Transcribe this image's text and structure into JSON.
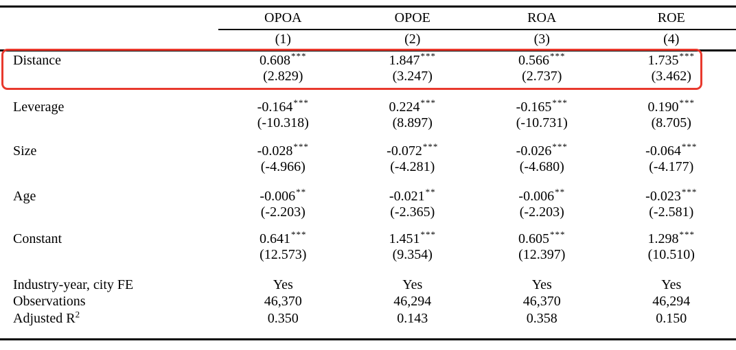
{
  "annotation": {
    "type": "highlight-box",
    "color": "#e8392d",
    "highlights_row": "Distance"
  },
  "table": {
    "columns": [
      {
        "dep_var": "OPOA",
        "model": "(1)"
      },
      {
        "dep_var": "OPOE",
        "model": "(2)"
      },
      {
        "dep_var": "ROA",
        "model": "(3)"
      },
      {
        "dep_var": "ROE",
        "model": "(4)"
      }
    ],
    "coef_rows": [
      {
        "label": "Distance",
        "cells": [
          {
            "coef": "0.608",
            "stars": "***",
            "t": "(2.829)"
          },
          {
            "coef": "1.847",
            "stars": "***",
            "t": "(3.247)"
          },
          {
            "coef": "0.566",
            "stars": "***",
            "t": "(2.737)"
          },
          {
            "coef": "1.735",
            "stars": "***",
            "t": "(3.462)"
          }
        ]
      },
      {
        "label": "Leverage",
        "cells": [
          {
            "coef": "-0.164",
            "stars": "***",
            "t": "(-10.318)"
          },
          {
            "coef": "0.224",
            "stars": "***",
            "t": "(8.897)"
          },
          {
            "coef": "-0.165",
            "stars": "***",
            "t": "(-10.731)"
          },
          {
            "coef": "0.190",
            "stars": "***",
            "t": "(8.705)"
          }
        ]
      },
      {
        "label": "Size",
        "cells": [
          {
            "coef": "-0.028",
            "stars": "***",
            "t": "(-4.966)"
          },
          {
            "coef": "-0.072",
            "stars": "***",
            "t": "(-4.281)"
          },
          {
            "coef": "-0.026",
            "stars": "***",
            "t": "(-4.680)"
          },
          {
            "coef": "-0.064",
            "stars": "***",
            "t": "(-4.177)"
          }
        ]
      },
      {
        "label": "Age",
        "cells": [
          {
            "coef": "-0.006",
            "stars": "**",
            "t": "(-2.203)"
          },
          {
            "coef": "-0.021",
            "stars": "**",
            "t": "(-2.365)"
          },
          {
            "coef": "-0.006",
            "stars": "**",
            "t": "(-2.203)"
          },
          {
            "coef": "-0.023",
            "stars": "***",
            "t": "(-2.581)"
          }
        ]
      },
      {
        "label": "Constant",
        "cells": [
          {
            "coef": "0.641",
            "stars": "***",
            "t": "(12.573)"
          },
          {
            "coef": "1.451",
            "stars": "***",
            "t": "(9.354)"
          },
          {
            "coef": "0.605",
            "stars": "***",
            "t": "(12.397)"
          },
          {
            "coef": "1.298",
            "stars": "***",
            "t": "(10.510)"
          }
        ]
      }
    ],
    "info_rows": [
      {
        "label": "Industry-year, city FE",
        "values": [
          "Yes",
          "Yes",
          "Yes",
          "Yes"
        ]
      },
      {
        "label": "Observations",
        "values": [
          "46,370",
          "46,294",
          "46,370",
          "46,294"
        ]
      },
      {
        "label_base": "Adjusted R",
        "label_sup": "2",
        "values": [
          "0.350",
          "0.143",
          "0.358",
          "0.150"
        ]
      }
    ]
  }
}
